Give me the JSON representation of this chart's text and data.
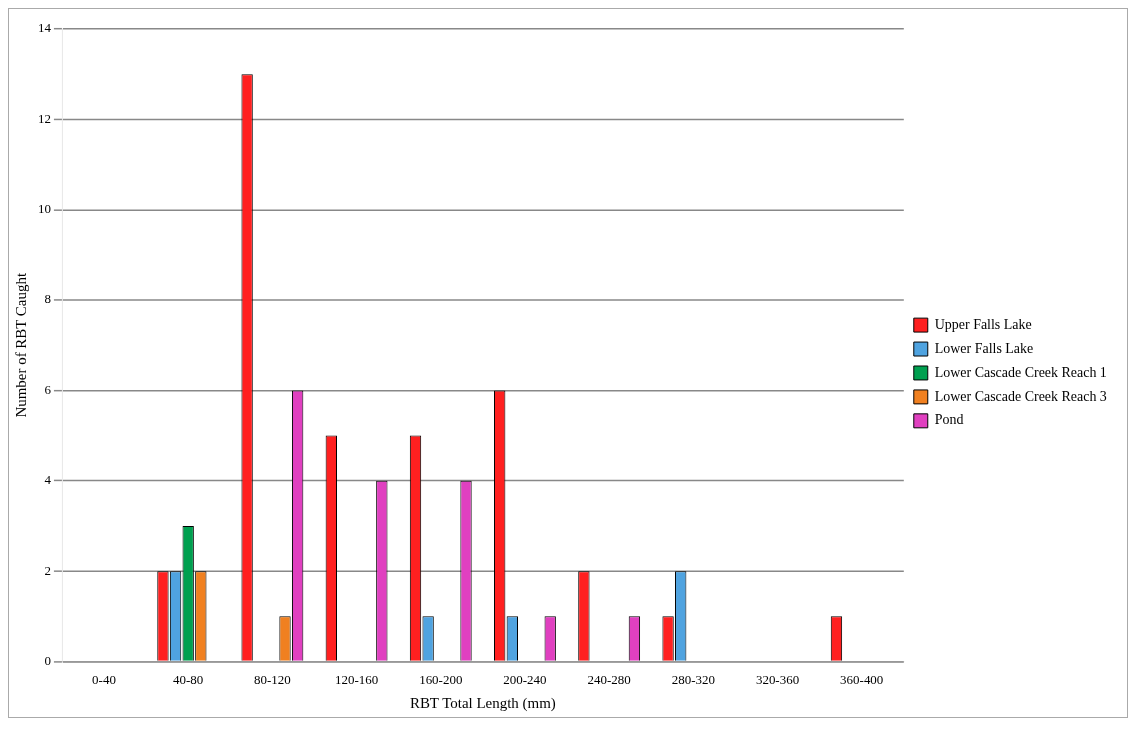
{
  "chart_data": {
    "type": "bar",
    "xlabel": "RBT Total Length (mm)",
    "ylabel": "Number of RBT Caught",
    "categories": [
      "0-40",
      "40-80",
      "80-120",
      "120-160",
      "160-200",
      "200-240",
      "240-280",
      "280-320",
      "320-360",
      "360-400"
    ],
    "series": [
      {
        "name": "Upper Falls Lake",
        "color": "#ff2020",
        "values": [
          0,
          2,
          13,
          5,
          5,
          6,
          2,
          1,
          0,
          1
        ]
      },
      {
        "name": "Lower Falls Lake",
        "color": "#4fa3e0",
        "values": [
          0,
          2,
          0,
          0,
          1,
          1,
          0,
          2,
          0,
          0
        ]
      },
      {
        "name": "Lower Cascade Creek Reach 1",
        "color": "#00a050",
        "values": [
          0,
          3,
          0,
          0,
          0,
          0,
          0,
          0,
          0,
          0
        ]
      },
      {
        "name": "Lower Cascade Creek Reach 3",
        "color": "#f08020",
        "values": [
          0,
          2,
          1,
          0,
          0,
          0,
          0,
          0,
          0,
          0
        ]
      },
      {
        "name": "Pond",
        "color": "#e040c0",
        "values": [
          0,
          0,
          6,
          4,
          4,
          1,
          1,
          0,
          0,
          0
        ]
      }
    ],
    "ylim": [
      0,
      14
    ],
    "yticks": [
      0,
      2,
      4,
      6,
      8,
      10,
      12,
      14
    ],
    "grid": "y",
    "legend": "right"
  }
}
